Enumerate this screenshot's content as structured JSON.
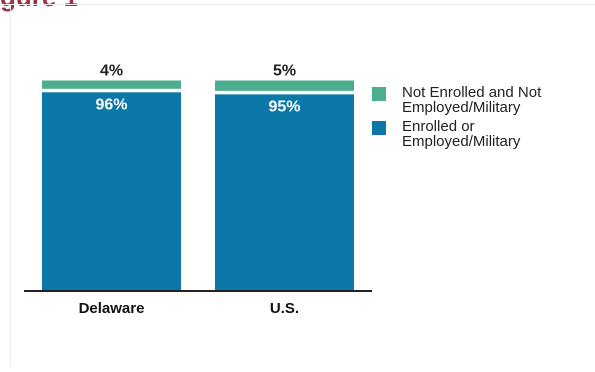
{
  "header_fragment": "gure 1",
  "colors": {
    "not_enrolled": "#4cae8e",
    "enrolled": "#0b78a8",
    "axis": "#222222"
  },
  "chart_data": {
    "type": "bar",
    "stacked": true,
    "categories": [
      "Delaware",
      "U.S."
    ],
    "series": [
      {
        "name": "Enrolled or Employed/Military",
        "values": [
          96,
          95
        ],
        "labels": [
          "96%",
          "95%"
        ]
      },
      {
        "name": "Not Enrolled and Not Employed/Military",
        "values": [
          4,
          5
        ],
        "labels": [
          "4%",
          "5%"
        ]
      }
    ],
    "ylim": [
      0,
      100
    ],
    "legend_position": "right",
    "grid": false
  },
  "legend": [
    {
      "label": "Not Enrolled and Not\nEmployed/Military",
      "color_key": "not_enrolled"
    },
    {
      "label": "Enrolled or\nEmployed/Military",
      "color_key": "enrolled"
    }
  ]
}
